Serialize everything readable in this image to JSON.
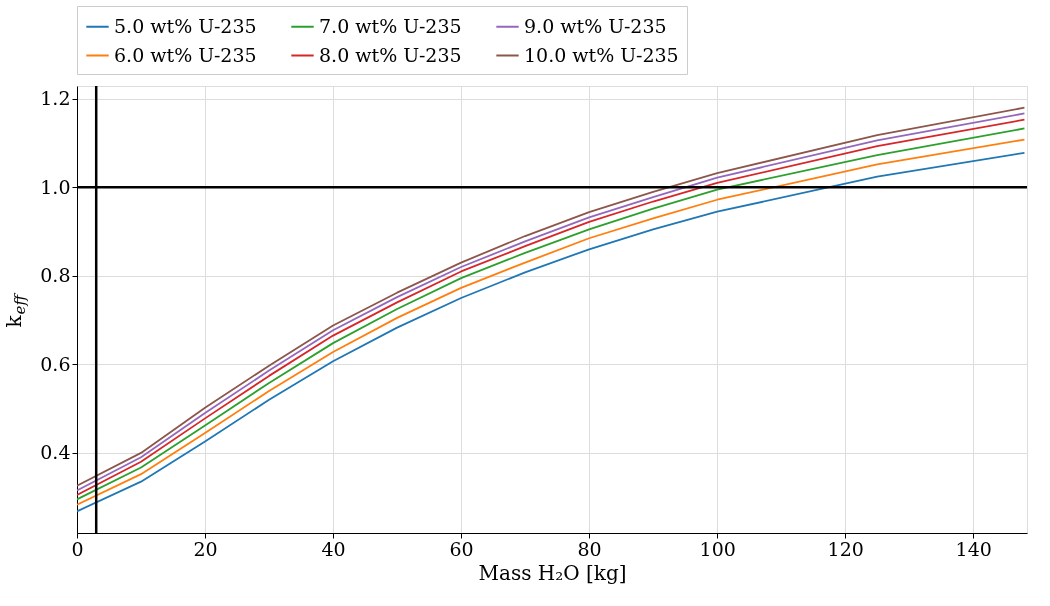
{
  "chart_data": {
    "type": "line",
    "xlabel": "Mass H₂O [kg]",
    "ylabel": "k$_{eff}$",
    "x": [
      0,
      10,
      20,
      30,
      40,
      50,
      60,
      70,
      80,
      90,
      100,
      125,
      148
    ],
    "series": [
      {
        "name": "5.0 wt% U-235",
        "color": "#1f77b4",
        "values": [
          0.268,
          0.335,
          0.426,
          0.52,
          0.607,
          0.683,
          0.75,
          0.808,
          0.86,
          0.905,
          0.945,
          1.024,
          1.078
        ]
      },
      {
        "name": "6.0 wt% U-235",
        "color": "#ff7f0e",
        "values": [
          0.283,
          0.352,
          0.445,
          0.54,
          0.628,
          0.705,
          0.773,
          0.83,
          0.885,
          0.93,
          0.972,
          1.052,
          1.108
        ]
      },
      {
        "name": "7.0 wt% U-235",
        "color": "#2ca02c",
        "values": [
          0.295,
          0.367,
          0.462,
          0.558,
          0.648,
          0.725,
          0.795,
          0.852,
          0.905,
          0.952,
          0.995,
          1.073,
          1.133
        ]
      },
      {
        "name": "8.0 wt% U-235",
        "color": "#d62728",
        "values": [
          0.305,
          0.38,
          0.478,
          0.574,
          0.665,
          0.74,
          0.81,
          0.867,
          0.922,
          0.968,
          1.01,
          1.093,
          1.153
        ]
      },
      {
        "name": "9.0 wt% U-235",
        "color": "#9467bd",
        "values": [
          0.315,
          0.39,
          0.49,
          0.586,
          0.677,
          0.752,
          0.82,
          0.878,
          0.932,
          0.978,
          1.022,
          1.106,
          1.167
        ]
      },
      {
        "name": "10.0 wt% U-235",
        "color": "#8c564b",
        "values": [
          0.326,
          0.4,
          0.502,
          0.597,
          0.688,
          0.762,
          0.83,
          0.89,
          0.944,
          0.99,
          1.032,
          1.118,
          1.18
        ]
      }
    ],
    "xlim": [
      0,
      148.4
    ],
    "xticks": [
      0,
      20,
      40,
      60,
      80,
      100,
      120,
      140
    ],
    "ylim": [
      0.219,
      1.229
    ],
    "yticks": [
      0.4,
      0.6,
      0.8,
      {
        "value": 1.0,
        "label": "1.0"
      },
      1.2
    ],
    "ref_lines": [
      {
        "axis": "y",
        "value": 1.0,
        "color": "#000000"
      },
      {
        "axis": "x",
        "value": 3,
        "color": "#000000"
      }
    ],
    "grid": true,
    "legend": "top",
    "line_style": "solid",
    "marker": "none"
  }
}
